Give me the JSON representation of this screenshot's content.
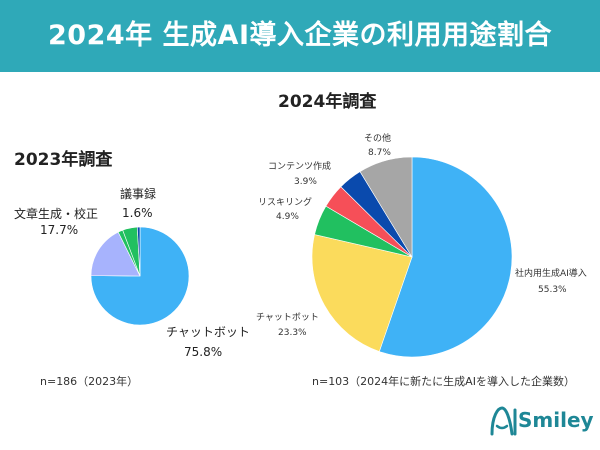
{
  "header": {
    "title": "2024年 生成AI導入企業の利用用途割合"
  },
  "brand": {
    "name": "Smiley"
  },
  "colors": {
    "header_bg": "#2fa9b8",
    "sky": "#3fb2f6",
    "lavender": "#a7b3fd",
    "green": "#21c060",
    "navy": "#0a4aad",
    "yellow": "#fbdb5c",
    "red": "#f64f58",
    "gray": "#a6a6a6"
  },
  "chart_data": [
    {
      "type": "pie",
      "title": "2023年調査",
      "note": "n=186（2023年）",
      "slices": [
        {
          "label": "チャットボット",
          "value": 75.8,
          "value_label": "75.8%",
          "color": "#3fb2f6"
        },
        {
          "label": "文章生成・校正",
          "value": 17.7,
          "value_label": "17.7%",
          "color": "#a7b3fd"
        },
        {
          "label": "議事録",
          "value": 1.6,
          "value_label": "1.6%",
          "color": "#21c060"
        },
        {
          "label": "",
          "value": 4.9,
          "value_label": "",
          "color": "#21c060"
        },
        {
          "label": "",
          "value": 0.9,
          "value_label": "",
          "color": "#0a4aad"
        }
      ]
    },
    {
      "type": "pie",
      "title": "2024年調査",
      "note": "n=103（2024年に新たに生成AIを導入した企業数）",
      "slices": [
        {
          "label": "社内用生成AI導入",
          "value": 55.3,
          "value_label": "55.3%",
          "color": "#3fb2f6"
        },
        {
          "label": "チャットボット",
          "value": 23.3,
          "value_label": "23.3%",
          "color": "#fbdb5c"
        },
        {
          "label": "リスキリング",
          "value": 4.9,
          "value_label": "4.9%",
          "color": "#21c060"
        },
        {
          "label": "",
          "value": 3.9,
          "value_label": "",
          "color": "#f64f58"
        },
        {
          "label": "コンテンツ作成",
          "value": 3.9,
          "value_label": "3.9%",
          "color": "#0a4aad"
        },
        {
          "label": "その他",
          "value": 8.7,
          "value_label": "8.7%",
          "color": "#a6a6a6"
        }
      ]
    }
  ]
}
